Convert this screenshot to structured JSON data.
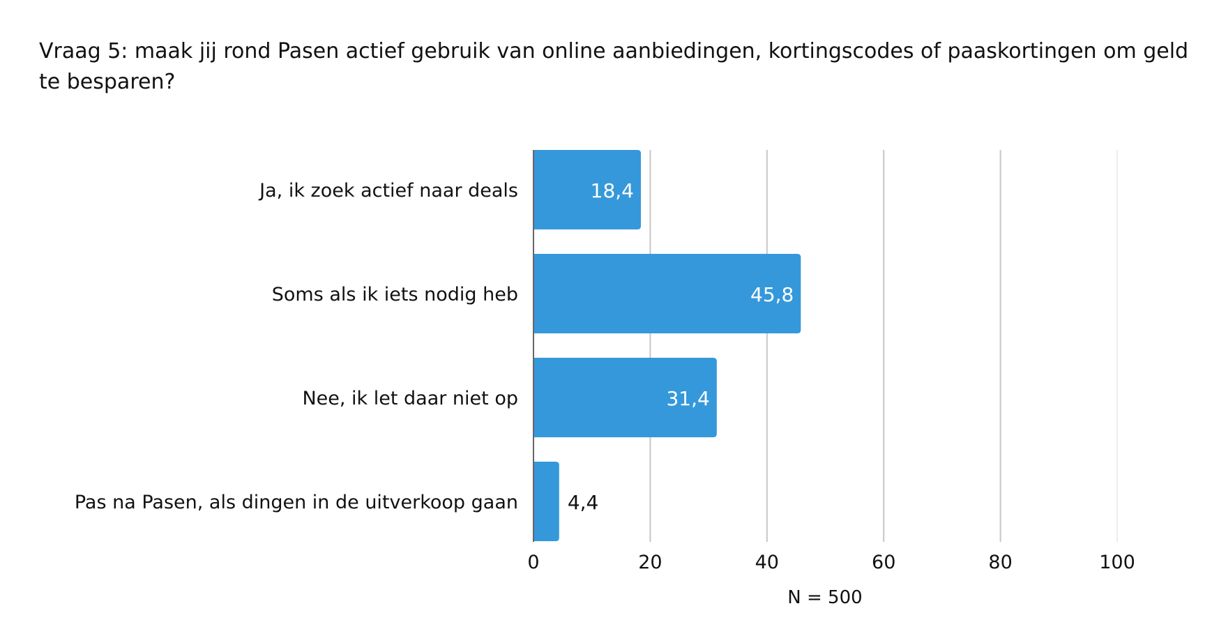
{
  "chart_data": {
    "type": "bar",
    "orientation": "horizontal",
    "title": "Vraag 5: maak jij rond Pasen actief gebruik van online aanbiedingen, kortingscodes of paaskortingen om geld te besparen?",
    "categories": [
      "Ja, ik zoek actief naar deals",
      "Soms als ik iets nodig heb",
      "Nee, ik let daar niet op",
      "Pas na Pasen, als dingen in de uitverkoop gaan"
    ],
    "values": [
      18.4,
      45.8,
      31.4,
      4.4
    ],
    "value_labels": [
      "18,4",
      "45,8",
      "31,4",
      "4,4"
    ],
    "xlim": [
      0,
      100
    ],
    "xticks": [
      0,
      20,
      40,
      60,
      80,
      100
    ],
    "xtick_labels": [
      "0",
      "20",
      "40",
      "60",
      "80",
      "100"
    ],
    "xlabel": "N = 500",
    "grid": true,
    "bar_color": "#3598db"
  }
}
